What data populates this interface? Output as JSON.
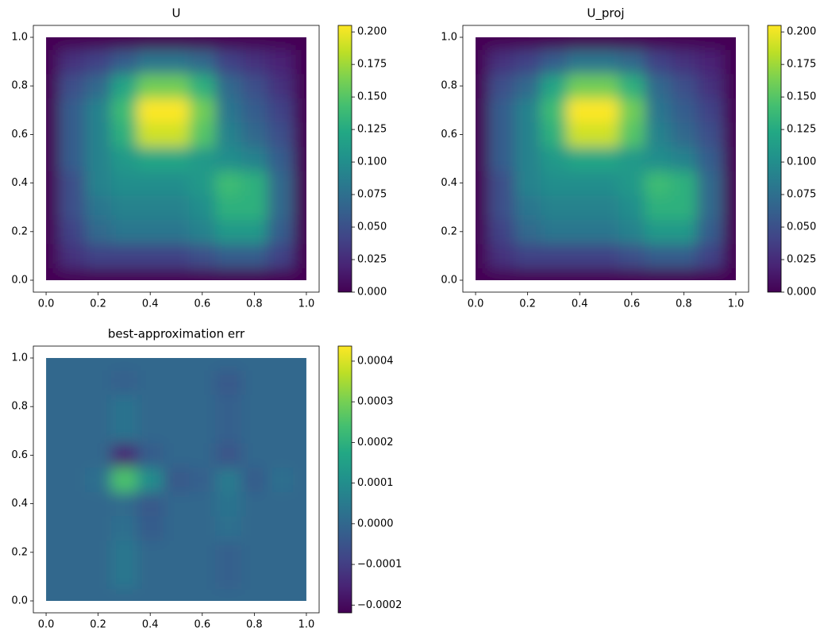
{
  "chart_data": [
    {
      "type": "heatmap",
      "title": "U",
      "cmap": "viridis",
      "x": [
        0,
        0.1,
        0.2,
        0.3,
        0.4,
        0.5,
        0.6,
        0.7,
        0.8,
        0.9,
        1
      ],
      "y": [
        0,
        0.1,
        0.2,
        0.3,
        0.4,
        0.5,
        0.6,
        0.7,
        0.8,
        0.9,
        1
      ],
      "values": [
        [
          0,
          0,
          0,
          0,
          0,
          0,
          0,
          0,
          0,
          0,
          0
        ],
        [
          0,
          0.03,
          0.04,
          0.04,
          0.04,
          0.04,
          0.05,
          0.06,
          0.06,
          0.04,
          0
        ],
        [
          0,
          0.04,
          0.07,
          0.08,
          0.08,
          0.08,
          0.09,
          0.11,
          0.11,
          0.06,
          0
        ],
        [
          0,
          0.05,
          0.08,
          0.09,
          0.09,
          0.09,
          0.1,
          0.13,
          0.13,
          0.07,
          0
        ],
        [
          0,
          0.05,
          0.09,
          0.1,
          0.1,
          0.1,
          0.11,
          0.14,
          0.13,
          0.07,
          0
        ],
        [
          0,
          0.06,
          0.09,
          0.11,
          0.12,
          0.12,
          0.11,
          0.1,
          0.09,
          0.06,
          0
        ],
        [
          0,
          0.06,
          0.09,
          0.13,
          0.19,
          0.19,
          0.15,
          0.09,
          0.07,
          0.05,
          0
        ],
        [
          0,
          0.06,
          0.09,
          0.14,
          0.205,
          0.205,
          0.16,
          0.08,
          0.06,
          0.04,
          0
        ],
        [
          0,
          0.05,
          0.07,
          0.12,
          0.16,
          0.16,
          0.13,
          0.07,
          0.05,
          0.03,
          0
        ],
        [
          0,
          0.03,
          0.04,
          0.06,
          0.08,
          0.08,
          0.07,
          0.04,
          0.03,
          0.02,
          0
        ],
        [
          0,
          0,
          0,
          0,
          0,
          0,
          0,
          0,
          0,
          0,
          0
        ]
      ],
      "xlim": [
        -0.049,
        1.049
      ],
      "ylim": [
        -0.049,
        1.049
      ],
      "xticks": [
        {
          "value": 0,
          "label": "0.0"
        },
        {
          "value": 0.2,
          "label": "0.2"
        },
        {
          "value": 0.4,
          "label": "0.4"
        },
        {
          "value": 0.6,
          "label": "0.6"
        },
        {
          "value": 0.8,
          "label": "0.8"
        },
        {
          "value": 1,
          "label": "1.0"
        }
      ],
      "yticks": [
        {
          "value": 0,
          "label": "0.0"
        },
        {
          "value": 0.2,
          "label": "0.2"
        },
        {
          "value": 0.4,
          "label": "0.4"
        },
        {
          "value": 0.6,
          "label": "0.6"
        },
        {
          "value": 0.8,
          "label": "0.8"
        },
        {
          "value": 1,
          "label": "1.0"
        }
      ],
      "clim": [
        0,
        0.205
      ],
      "cticks": [
        {
          "value": 0,
          "label": "0.000"
        },
        {
          "value": 0.025,
          "label": "0.025"
        },
        {
          "value": 0.05,
          "label": "0.050"
        },
        {
          "value": 0.075,
          "label": "0.075"
        },
        {
          "value": 0.1,
          "label": "0.100"
        },
        {
          "value": 0.125,
          "label": "0.125"
        },
        {
          "value": 0.15,
          "label": "0.150"
        },
        {
          "value": 0.175,
          "label": "0.175"
        },
        {
          "value": 0.2,
          "label": "0.200"
        }
      ]
    },
    {
      "type": "heatmap",
      "title": "U_proj",
      "cmap": "viridis",
      "x": [
        0,
        0.1,
        0.2,
        0.3,
        0.4,
        0.5,
        0.6,
        0.7,
        0.8,
        0.9,
        1
      ],
      "y": [
        0,
        0.1,
        0.2,
        0.3,
        0.4,
        0.5,
        0.6,
        0.7,
        0.8,
        0.9,
        1
      ],
      "values": [
        [
          0,
          0,
          0,
          0,
          0,
          0,
          0,
          0,
          0,
          0,
          0
        ],
        [
          0,
          0.03,
          0.04,
          0.04,
          0.04,
          0.04,
          0.05,
          0.06,
          0.06,
          0.04,
          0
        ],
        [
          0,
          0.04,
          0.07,
          0.08,
          0.08,
          0.08,
          0.09,
          0.11,
          0.11,
          0.06,
          0
        ],
        [
          0,
          0.05,
          0.08,
          0.09,
          0.09,
          0.09,
          0.1,
          0.13,
          0.13,
          0.07,
          0
        ],
        [
          0,
          0.05,
          0.09,
          0.1,
          0.1,
          0.1,
          0.11,
          0.14,
          0.13,
          0.07,
          0
        ],
        [
          0,
          0.06,
          0.09,
          0.11,
          0.12,
          0.12,
          0.11,
          0.1,
          0.09,
          0.06,
          0
        ],
        [
          0,
          0.06,
          0.09,
          0.13,
          0.19,
          0.19,
          0.15,
          0.09,
          0.07,
          0.05,
          0
        ],
        [
          0,
          0.06,
          0.09,
          0.14,
          0.205,
          0.205,
          0.16,
          0.08,
          0.06,
          0.04,
          0
        ],
        [
          0,
          0.05,
          0.07,
          0.12,
          0.16,
          0.16,
          0.13,
          0.07,
          0.05,
          0.03,
          0
        ],
        [
          0,
          0.03,
          0.04,
          0.06,
          0.08,
          0.08,
          0.07,
          0.04,
          0.03,
          0.02,
          0
        ],
        [
          0,
          0,
          0,
          0,
          0,
          0,
          0,
          0,
          0,
          0,
          0
        ]
      ],
      "xlim": [
        -0.049,
        1.049
      ],
      "ylim": [
        -0.049,
        1.049
      ],
      "xticks": [
        {
          "value": 0,
          "label": "0.0"
        },
        {
          "value": 0.2,
          "label": "0.2"
        },
        {
          "value": 0.4,
          "label": "0.4"
        },
        {
          "value": 0.6,
          "label": "0.6"
        },
        {
          "value": 0.8,
          "label": "0.8"
        },
        {
          "value": 1,
          "label": "1.0"
        }
      ],
      "yticks": [
        {
          "value": 0,
          "label": "0.0"
        },
        {
          "value": 0.2,
          "label": "0.2"
        },
        {
          "value": 0.4,
          "label": "0.4"
        },
        {
          "value": 0.6,
          "label": "0.6"
        },
        {
          "value": 0.8,
          "label": "0.8"
        },
        {
          "value": 1,
          "label": "1.0"
        }
      ],
      "clim": [
        0,
        0.205
      ],
      "cticks": [
        {
          "value": 0,
          "label": "0.000"
        },
        {
          "value": 0.025,
          "label": "0.025"
        },
        {
          "value": 0.05,
          "label": "0.050"
        },
        {
          "value": 0.075,
          "label": "0.075"
        },
        {
          "value": 0.1,
          "label": "0.100"
        },
        {
          "value": 0.125,
          "label": "0.125"
        },
        {
          "value": 0.15,
          "label": "0.150"
        },
        {
          "value": 0.175,
          "label": "0.175"
        },
        {
          "value": 0.2,
          "label": "0.200"
        }
      ]
    },
    {
      "type": "heatmap",
      "title": "best-approximation err",
      "cmap": "viridis",
      "x": [
        0,
        0.1,
        0.2,
        0.3,
        0.4,
        0.5,
        0.6,
        0.7,
        0.8,
        0.9,
        1
      ],
      "y": [
        0,
        0.1,
        0.2,
        0.3,
        0.4,
        0.5,
        0.6,
        0.7,
        0.8,
        0.9,
        1
      ],
      "values": [
        [
          0,
          0,
          0,
          0,
          0,
          0,
          0,
          0,
          0,
          0,
          0
        ],
        [
          0,
          0,
          0,
          4e-05,
          0,
          0,
          0,
          -2e-05,
          0,
          0,
          0
        ],
        [
          0,
          0,
          0,
          4e-05,
          0,
          0,
          0,
          -2e-05,
          0,
          0,
          0
        ],
        [
          0,
          0,
          0,
          2e-05,
          -3e-05,
          0,
          0,
          2e-05,
          0,
          0,
          0
        ],
        [
          0,
          0,
          0,
          1e-05,
          -4e-05,
          0,
          0,
          3e-05,
          0,
          0,
          0
        ],
        [
          0,
          0,
          2e-05,
          0.00025,
          0.0001,
          -4e-05,
          -2e-05,
          5e-05,
          -3e-05,
          2e-05,
          0
        ],
        [
          0,
          0,
          0,
          -0.00015,
          -3e-05,
          0,
          0,
          -5e-05,
          0,
          0,
          0
        ],
        [
          0,
          0,
          0,
          3e-05,
          0,
          0,
          0,
          -2e-05,
          0,
          0,
          0
        ],
        [
          0,
          0,
          0,
          3e-05,
          0,
          0,
          0,
          -2e-05,
          0,
          0,
          0
        ],
        [
          0,
          0,
          0,
          -2e-05,
          0,
          0,
          0,
          -4e-05,
          0,
          0,
          0
        ],
        [
          0,
          0,
          0,
          0,
          0,
          0,
          0,
          0,
          0,
          0,
          0
        ]
      ],
      "xlim": [
        -0.049,
        1.049
      ],
      "ylim": [
        -0.049,
        1.049
      ],
      "xticks": [
        {
          "value": 0,
          "label": "0.0"
        },
        {
          "value": 0.2,
          "label": "0.2"
        },
        {
          "value": 0.4,
          "label": "0.4"
        },
        {
          "value": 0.6,
          "label": "0.6"
        },
        {
          "value": 0.8,
          "label": "0.8"
        },
        {
          "value": 1,
          "label": "1.0"
        }
      ],
      "yticks": [
        {
          "value": 0,
          "label": "0.0"
        },
        {
          "value": 0.2,
          "label": "0.2"
        },
        {
          "value": 0.4,
          "label": "0.4"
        },
        {
          "value": 0.6,
          "label": "0.6"
        },
        {
          "value": 0.8,
          "label": "0.8"
        },
        {
          "value": 1,
          "label": "1.0"
        }
      ],
      "clim": [
        -0.000219,
        0.000437
      ],
      "cticks": [
        {
          "value": -0.0002,
          "label": "−0.0002"
        },
        {
          "value": -0.0001,
          "label": "−0.0001"
        },
        {
          "value": 0,
          "label": "0.0000"
        },
        {
          "value": 0.0001,
          "label": "0.0001"
        },
        {
          "value": 0.0002,
          "label": "0.0002"
        },
        {
          "value": 0.0003,
          "label": "0.0003"
        },
        {
          "value": 0.0004,
          "label": "0.0004"
        }
      ]
    }
  ]
}
